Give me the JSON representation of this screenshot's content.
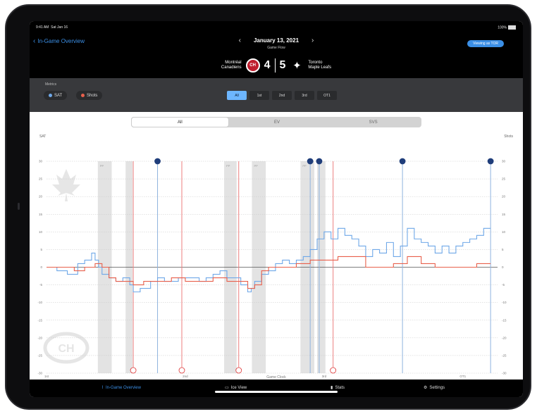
{
  "status": {
    "time": "9:41 AM",
    "date": "Sat Jan 16",
    "battery": "100%"
  },
  "header": {
    "back_label": "In-Game Overview",
    "date": "January 13, 2021",
    "subtitle": "Game Flow",
    "view_button": "Viewing as TOR",
    "home_team": {
      "name_line1": "Montréal",
      "name_line2": "Canadiens",
      "score": "4",
      "logo": "CH"
    },
    "away_team": {
      "name_line1": "Toronto",
      "name_line2": "Maple Leafs",
      "score": "5",
      "logo": "maple-leaf"
    }
  },
  "metrics": {
    "label": "Metrics",
    "items": [
      {
        "label": "SAT",
        "color": "#6fa8e8"
      },
      {
        "label": "Shots",
        "color": "#e8604c"
      }
    ]
  },
  "periods": [
    {
      "label": "All",
      "active": true
    },
    {
      "label": "1st",
      "active": false
    },
    {
      "label": "2nd",
      "active": false
    },
    {
      "label": "3rd",
      "active": false
    },
    {
      "label": "OT1",
      "active": false
    }
  ],
  "strength_tabs": [
    {
      "label": "All",
      "active": true
    },
    {
      "label": "EV",
      "active": false
    },
    {
      "label": "SVS",
      "active": false
    }
  ],
  "chart_data": {
    "type": "line",
    "y_left_label": "SAT",
    "y_right_label": "Shots",
    "xlabel": "Game Clock",
    "ylim": [
      -30,
      30
    ],
    "y_ticks": [
      30,
      25,
      20,
      15,
      10,
      5,
      0,
      -5,
      -10,
      -15,
      -20,
      -25,
      -30
    ],
    "x_range": [
      0,
      65
    ],
    "x_ticks": [
      {
        "t": 0,
        "line1": "1st",
        "line2": "20:00"
      },
      {
        "t": 5,
        "line1": "",
        "line2": "15:00"
      },
      {
        "t": 10,
        "line1": "",
        "line2": "10:00"
      },
      {
        "t": 15,
        "line1": "",
        "line2": "5:00"
      },
      {
        "t": 20,
        "line1": "2nd",
        "line2": "20:00"
      },
      {
        "t": 25,
        "line1": "",
        "line2": "15:00"
      },
      {
        "t": 30,
        "line1": "",
        "line2": "10:00"
      },
      {
        "t": 35,
        "line1": "",
        "line2": "5:00"
      },
      {
        "t": 40,
        "line1": "3rd",
        "line2": "20:00"
      },
      {
        "t": 45,
        "line1": "",
        "line2": "15:00"
      },
      {
        "t": 50,
        "line1": "",
        "line2": "10:00"
      },
      {
        "t": 55,
        "line1": "",
        "line2": "5:00"
      },
      {
        "t": 60,
        "line1": "OT1",
        "line2": "5:00"
      }
    ],
    "penalties": [
      {
        "start": 7.4,
        "end": 9.4,
        "label": "PP"
      },
      {
        "start": 11.4,
        "end": 12.4,
        "label": ""
      },
      {
        "start": 25.6,
        "end": 27.4,
        "label": "PP"
      },
      {
        "start": 29.6,
        "end": 31.6,
        "label": "PP"
      },
      {
        "start": 36.6,
        "end": 38.6,
        "label": "PP"
      },
      {
        "start": 39.0,
        "end": 40.2,
        "label": ""
      }
    ],
    "goals": [
      {
        "t": 16.0,
        "team": "TOR"
      },
      {
        "t": 12.5,
        "team": "MTL"
      },
      {
        "t": 19.5,
        "team": "MTL"
      },
      {
        "t": 27.7,
        "team": "MTL"
      },
      {
        "t": 38.0,
        "team": "TOR"
      },
      {
        "t": 39.3,
        "team": "TOR"
      },
      {
        "t": 41.3,
        "team": "MTL"
      },
      {
        "t": 51.3,
        "team": "TOR"
      },
      {
        "t": 64.0,
        "team": "TOR"
      }
    ],
    "series": [
      {
        "name": "SAT",
        "color": "#6fa8e8",
        "x": [
          0,
          1.5,
          3,
          4.5,
          5.5,
          6.5,
          7,
          7.5,
          8,
          9,
          10,
          11,
          12,
          12.5,
          13.5,
          15,
          16,
          17,
          18,
          19,
          20,
          22,
          23,
          24,
          25,
          26,
          27,
          28,
          29,
          29.5,
          30,
          31,
          32,
          33,
          34,
          35,
          36,
          37,
          38,
          39,
          40,
          41,
          42,
          43,
          44,
          45,
          46,
          47,
          48,
          49,
          50,
          51,
          52,
          53,
          54,
          55,
          56,
          57,
          58,
          59,
          60,
          61,
          62,
          63,
          64
        ],
        "y": [
          0,
          -1,
          -2,
          1,
          2,
          4,
          2,
          0,
          -2,
          -3,
          -4,
          -3,
          -5,
          -7,
          -6,
          -4,
          -3,
          -4,
          -4,
          -3,
          -3,
          -4,
          -3,
          -2,
          -1,
          -3,
          -3,
          -5,
          -7,
          -6,
          -4,
          -2,
          -1,
          1,
          2,
          1,
          2,
          3,
          5,
          8,
          10,
          8,
          11,
          9,
          8,
          6,
          3,
          5,
          4,
          7,
          3,
          6,
          11,
          8,
          7,
          6,
          4,
          6,
          4,
          6,
          7,
          8,
          9,
          11,
          11
        ]
      },
      {
        "name": "Shots",
        "color": "#e8604c",
        "x": [
          0,
          2,
          4,
          5.5,
          7,
          8,
          9,
          10,
          12.5,
          14,
          16,
          18,
          20,
          22,
          24,
          26,
          28,
          29,
          30,
          31,
          32,
          34,
          36,
          38,
          40,
          42,
          44,
          46,
          48,
          50,
          52,
          54,
          56,
          58,
          60,
          62,
          64
        ],
        "y": [
          0,
          0,
          -1,
          0,
          1,
          0,
          -3,
          -4,
          -5,
          -4,
          -4,
          -3,
          -4,
          -4,
          -3,
          -4,
          -4,
          -6,
          -5,
          -1,
          0,
          0,
          1,
          2,
          2,
          3,
          3,
          0,
          0,
          1,
          3,
          1,
          0,
          0,
          0,
          1,
          1
        ]
      }
    ]
  },
  "tabs": [
    {
      "label": "In-Game Overview",
      "icon": "chart-icon",
      "active": true
    },
    {
      "label": "Ice View",
      "icon": "rink-icon",
      "active": false
    },
    {
      "label": "Stats",
      "icon": "bar-chart-icon",
      "active": false
    },
    {
      "label": "Settings",
      "icon": "gear-icon",
      "active": false
    }
  ]
}
